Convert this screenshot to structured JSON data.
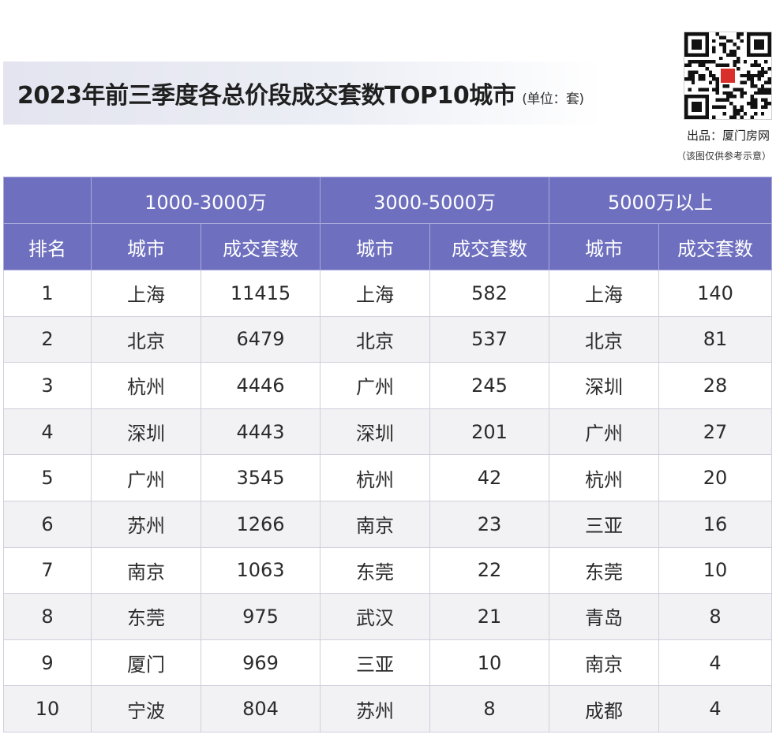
{
  "header": {
    "title": "2023年前三季度各总价段成交套数TOP10城市",
    "unit": "(单位：套)",
    "source": "出品：厦门房网",
    "note": "（该图仅供参考示意）"
  },
  "colors": {
    "header_bg": "#6e6fbf",
    "row_alt_bg": "#f2f2f4",
    "banner_bg": "#e3e4ef"
  },
  "icons": {
    "qr": "qr-code-icon"
  },
  "chart_data": {
    "type": "table",
    "title": "2023年前三季度各总价段成交套数TOP10城市",
    "unit": "(单位：套)",
    "group_headers": [
      "1000-3000万",
      "3000-5000万",
      "5000万以上"
    ],
    "column_headers": [
      "排名",
      "城市",
      "成交套数",
      "城市",
      "成交套数",
      "城市",
      "成交套数"
    ],
    "rows": [
      [
        "1",
        "上海",
        "11415",
        "上海",
        "582",
        "上海",
        "140"
      ],
      [
        "2",
        "北京",
        "6479",
        "北京",
        "537",
        "北京",
        "81"
      ],
      [
        "3",
        "杭州",
        "4446",
        "广州",
        "245",
        "深圳",
        "28"
      ],
      [
        "4",
        "深圳",
        "4443",
        "深圳",
        "201",
        "广州",
        "27"
      ],
      [
        "5",
        "广州",
        "3545",
        "杭州",
        "42",
        "杭州",
        "20"
      ],
      [
        "6",
        "苏州",
        "1266",
        "南京",
        "23",
        "三亚",
        "16"
      ],
      [
        "7",
        "南京",
        "1063",
        "东莞",
        "22",
        "东莞",
        "10"
      ],
      [
        "8",
        "东莞",
        "975",
        "武汉",
        "21",
        "青岛",
        "8"
      ],
      [
        "9",
        "厦门",
        "969",
        "三亚",
        "10",
        "南京",
        "4"
      ],
      [
        "10",
        "宁波",
        "804",
        "苏州",
        "8",
        "成都",
        "4"
      ]
    ]
  }
}
